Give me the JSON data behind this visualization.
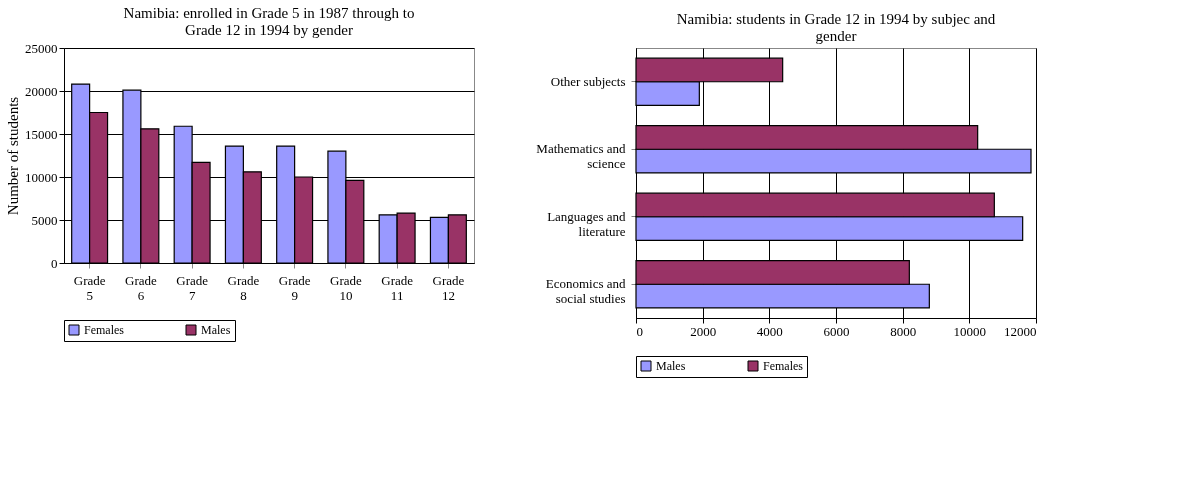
{
  "chart_data": [
    {
      "type": "bar",
      "title": "Namibia: enrolled in Grade 5 in 1987 through to Grade 12 in 1994 by gender",
      "ylabel": "Number of students",
      "categories": [
        "Grade 5",
        "Grade 6",
        "Grade 7",
        "Grade 8",
        "Grade 9",
        "Grade 10",
        "Grade 11",
        "Grade 12"
      ],
      "series": [
        {
          "name": "Females",
          "color": "#9999ff",
          "values": [
            20800,
            20100,
            15900,
            13600,
            13600,
            13000,
            5600,
            5300
          ]
        },
        {
          "name": "Males",
          "color": "#993366",
          "values": [
            17500,
            15600,
            11700,
            10600,
            10000,
            9600,
            5800,
            5600
          ]
        }
      ],
      "ylim": [
        0,
        25000
      ],
      "yticks": [
        0,
        5000,
        10000,
        15000,
        20000,
        25000
      ],
      "grid": "y",
      "legend": "bottom"
    },
    {
      "type": "bar",
      "orientation": "horizontal",
      "title": "Namibia: students in Grade 12 in 1994 by subjec and gender",
      "categories": [
        "Other subjects",
        "Mathematics and science",
        "Languages and literature",
        "Economics and social studies"
      ],
      "series": [
        {
          "name": "Males",
          "color": "#9999ff",
          "values": [
            1900,
            11850,
            11600,
            8800
          ]
        },
        {
          "name": "Females",
          "color": "#993366",
          "values": [
            4400,
            10250,
            10750,
            8200
          ]
        }
      ],
      "xlim": [
        0,
        12000
      ],
      "xticks": [
        0,
        2000,
        4000,
        6000,
        8000,
        10000,
        12000
      ],
      "grid": "x",
      "legend": "bottom"
    }
  ]
}
